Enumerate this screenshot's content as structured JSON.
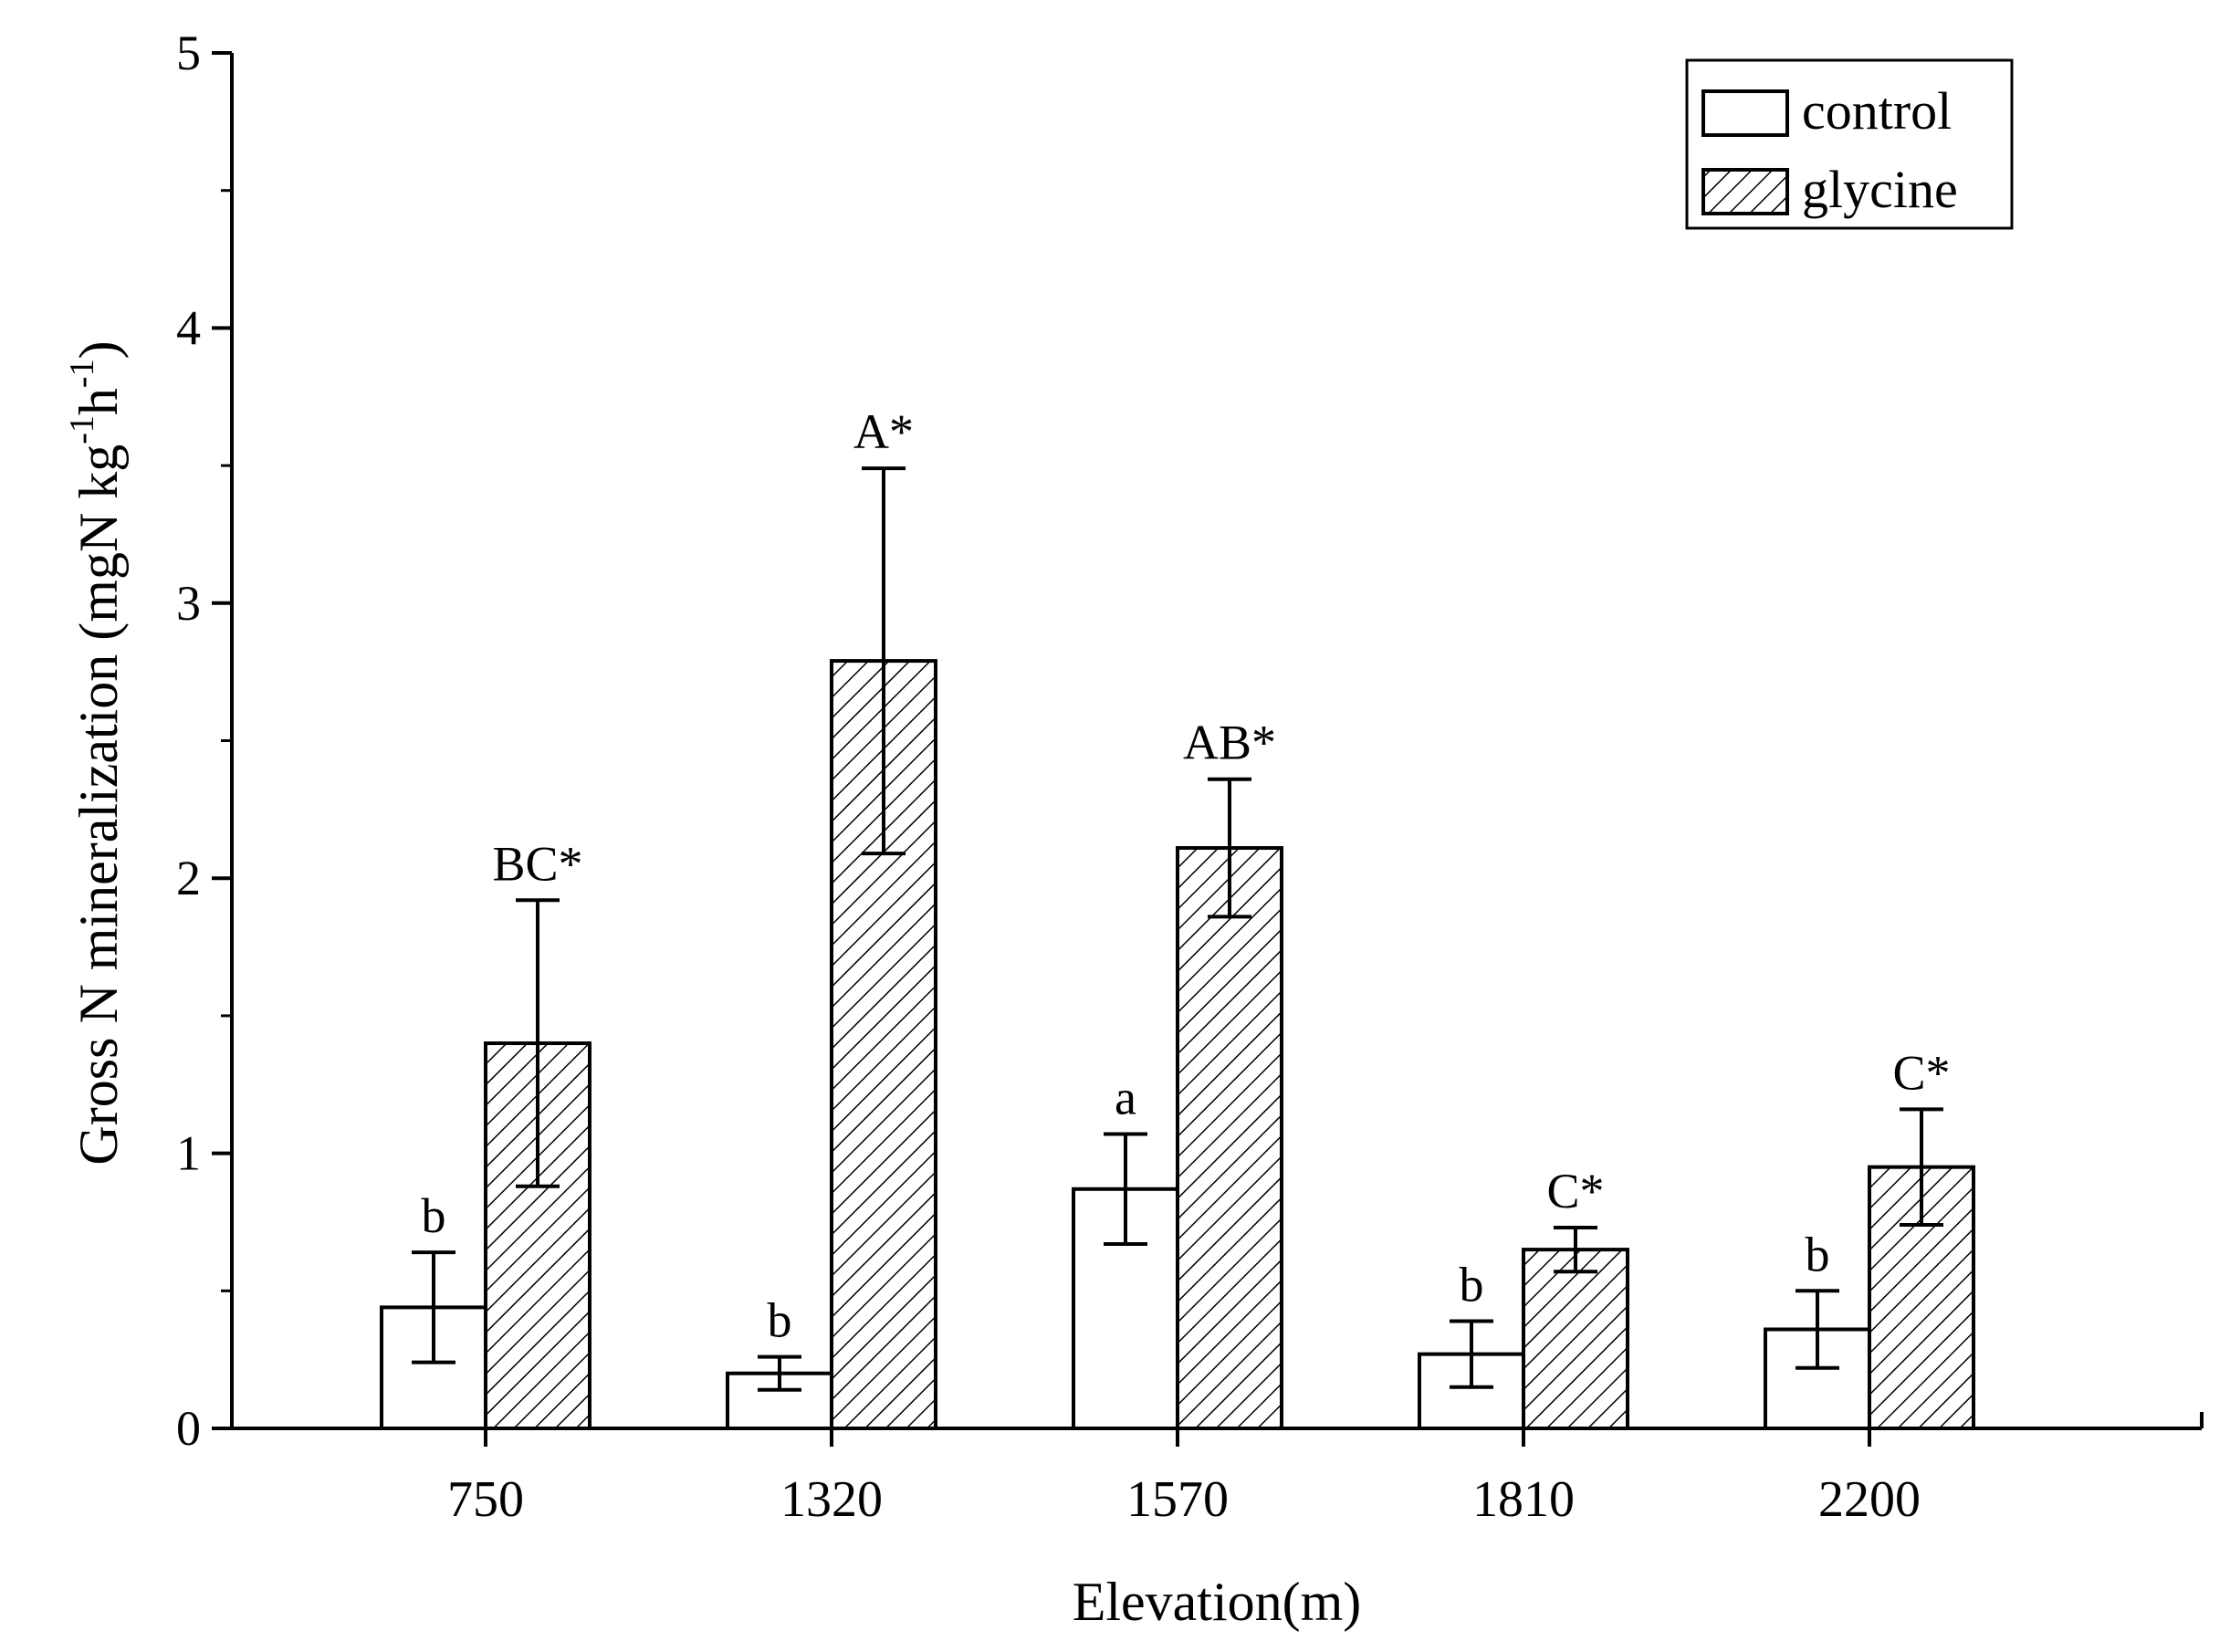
{
  "chart_data": {
    "type": "bar",
    "title": "",
    "xlabel": "Elevation(m)",
    "ylabel": "Gross N mineralization (mgN kg-1h-1)",
    "ylabel_parts": {
      "main": "Gross N mineralization (mgN kg",
      "exp1": "-1",
      "unit2": "h",
      "exp2": "-1",
      "close": ")"
    },
    "ylim": [
      0,
      5
    ],
    "yticks": [
      "0",
      "1",
      "2",
      "3",
      "4",
      "5"
    ],
    "categories": [
      "750",
      "1320",
      "1570",
      "1810",
      "2200"
    ],
    "series": [
      {
        "name": "control",
        "pattern": "none",
        "values": [
          0.44,
          0.2,
          0.87,
          0.27,
          0.36
        ],
        "errors": [
          0.2,
          0.06,
          0.2,
          0.12,
          0.14
        ],
        "labels": [
          "b",
          "b",
          "a",
          "b",
          "b"
        ]
      },
      {
        "name": "glycine",
        "pattern": "hatch",
        "values": [
          1.4,
          2.79,
          2.11,
          0.65,
          0.95
        ],
        "errors": [
          0.52,
          0.7,
          0.25,
          0.08,
          0.21
        ],
        "labels": [
          "BC*",
          "A*",
          "AB*",
          "C*",
          "C*"
        ]
      }
    ],
    "legend_position": "top-right",
    "grid": false,
    "colors": {
      "bar_fill": "#ffffff",
      "stroke": "#000000",
      "hatch": "#000000"
    }
  }
}
